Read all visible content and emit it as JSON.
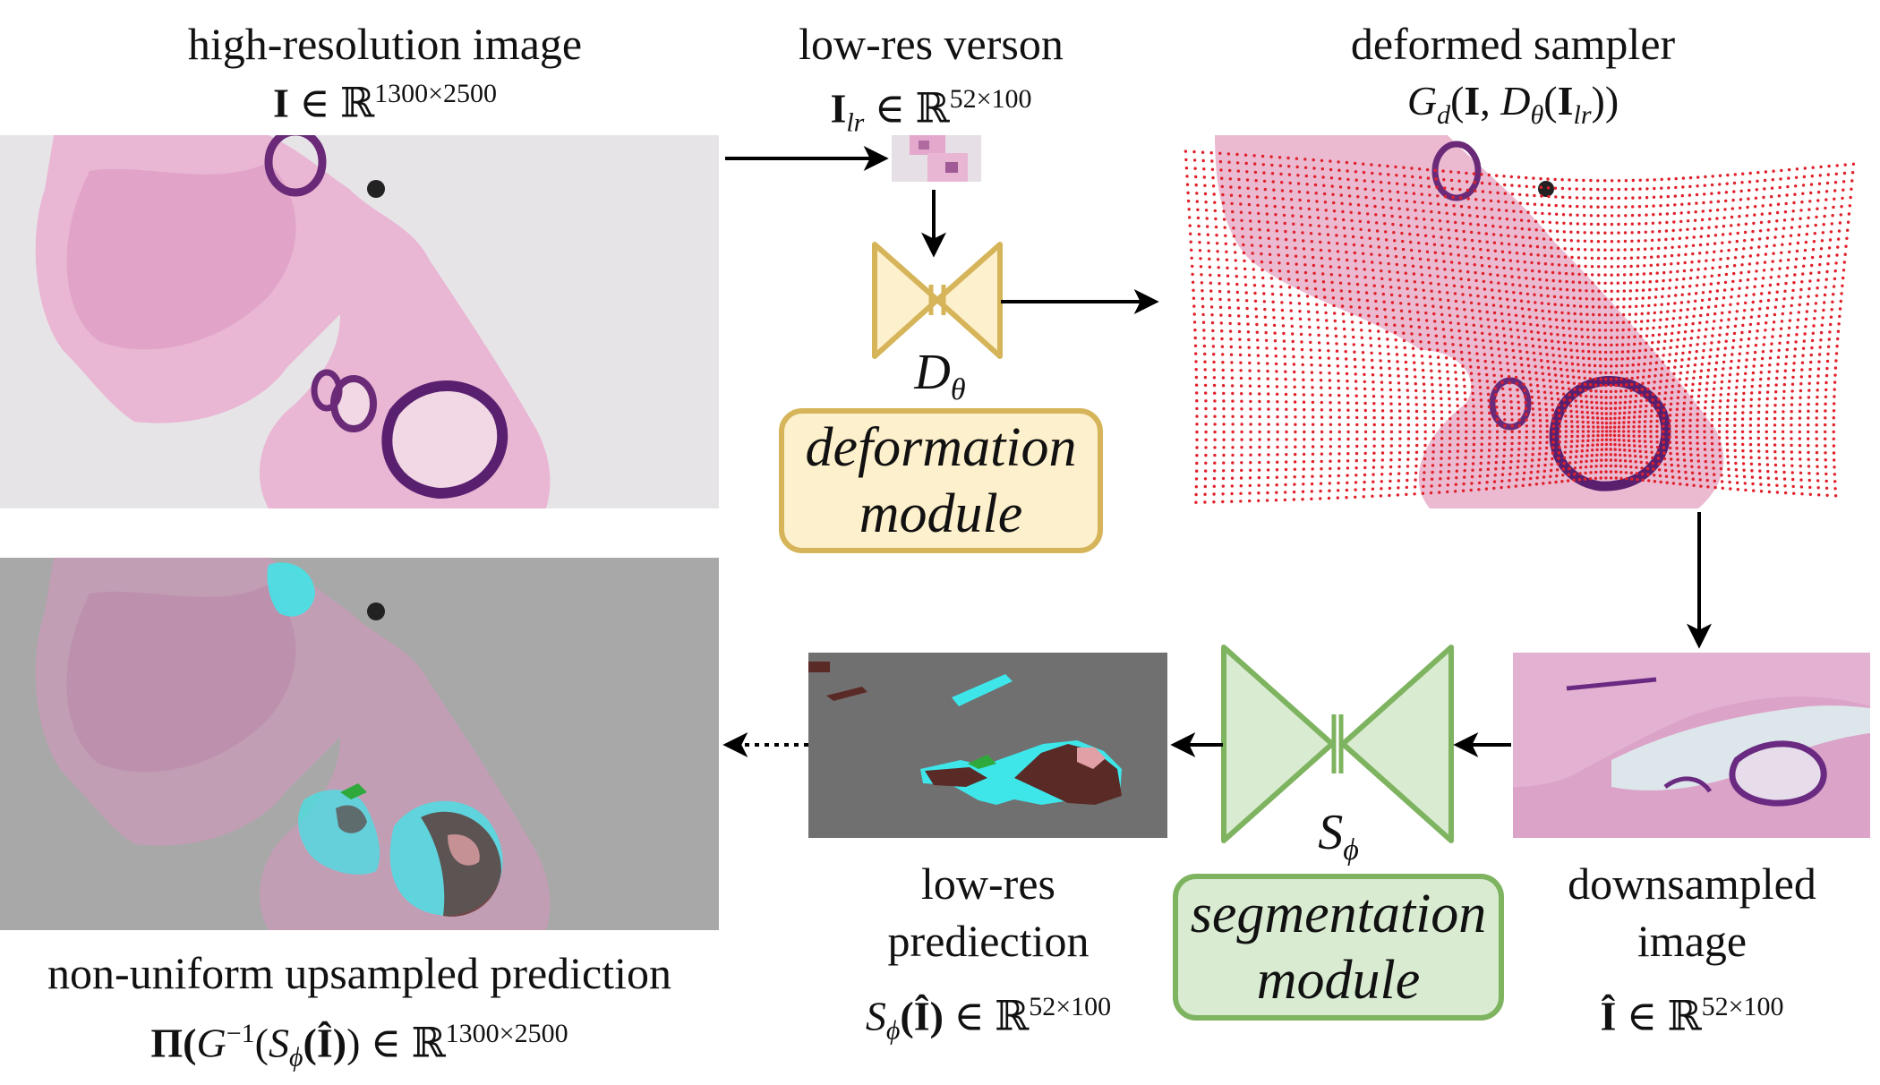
{
  "colors": {
    "deformation_fill": "#fdf0cc",
    "deformation_stroke": "#d6b45a",
    "segmentation_fill": "#d9ecd2",
    "segmentation_stroke": "#7eb35f",
    "tissue_pink": "#e6a9cc",
    "tissue_purple": "#7a3a82",
    "sampler_red": "#e0202a",
    "pred_cyan": "#3ee6ea",
    "pred_brown": "#5a2a26",
    "pred_gray": "#707070",
    "pred_green": "#2fa83c"
  },
  "captions": {
    "high_res": "high-resolution image",
    "low_res": "low-res verson",
    "deformed": "deformed sampler",
    "low_res_pred_line1": "low-res",
    "low_res_pred_line2": "prediection",
    "downsampled_line1": "downsampled",
    "downsampled_line2": "image",
    "upsampled": "non-uniform upsampled prediction"
  },
  "formulas": {
    "high_res": {
      "sym": "I",
      "rel": " ∈ ℝ",
      "dims": "1300×2500"
    },
    "low_res": {
      "sym": "I",
      "sub": "lr",
      "rel": " ∈ ℝ",
      "dims": "52×100"
    },
    "deformed": {
      "g": "G",
      "gsub": "d",
      "open": "(",
      "i": "I",
      "comma": ", ",
      "d": "D",
      "dsub": "θ",
      "open2": "(",
      "ilr": "I",
      "ilrsub": "lr",
      "close": "))"
    },
    "low_res_pred": {
      "s": "S",
      "ssub": "ϕ",
      "arg": "(Î)",
      "rel": " ∈ ℝ",
      "dims": "52×100"
    },
    "downsampled": {
      "sym": "Î",
      "rel": " ∈ ℝ",
      "dims": "52×100"
    },
    "upsampled": {
      "pi": "Π(",
      "g": "G",
      "gsup": "−1",
      "open": "(",
      "s": "S",
      "ssub": "ϕ",
      "arg": "(Î)",
      "close": ")",
      "rel": " ∈ ℝ",
      "dims": "1300×2500"
    }
  },
  "modules": {
    "deformation": {
      "symbol": "D",
      "symbol_sub": "θ",
      "line1": "deformation",
      "line2": "module"
    },
    "segmentation": {
      "symbol": "S",
      "symbol_sub": "ϕ",
      "line1": "segmentation",
      "line2": "module"
    }
  },
  "icons": [
    "arrow-right",
    "arrow-down",
    "arrow-left",
    "dotted-arrow-left",
    "bowtie-network"
  ]
}
